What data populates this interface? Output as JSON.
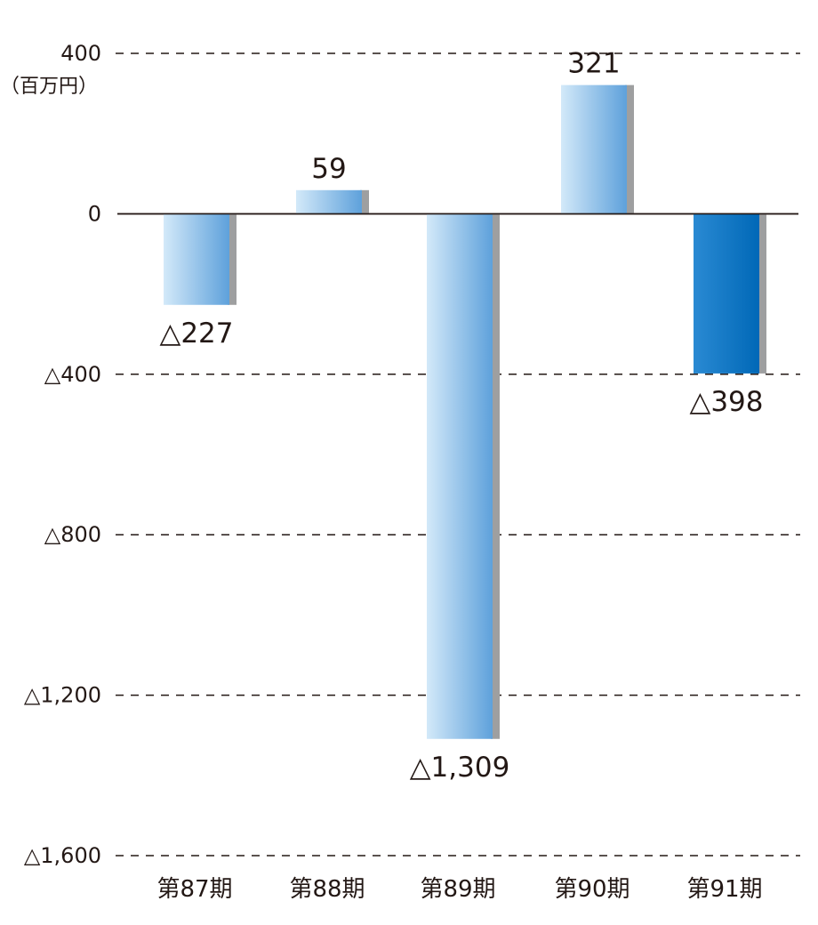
{
  "chart_data": {
    "type": "bar",
    "unit": "（百万円）",
    "categories": [
      "第87期",
      "第88期",
      "第89期",
      "第90期",
      "第91期"
    ],
    "values": [
      -227,
      59,
      -1309,
      321,
      -398
    ],
    "value_labels": [
      "△227",
      "59",
      "△1,309",
      "321",
      "△398"
    ],
    "ylim": [
      -1600,
      400
    ],
    "yticks": [
      400,
      0,
      -400,
      -800,
      -1200,
      -1600
    ],
    "ytick_labels": [
      "400",
      "0",
      "△400",
      "△800",
      "△1,200",
      "△1,600"
    ],
    "grid": "dashed horizontal at ticks",
    "highlighted_category": "第91期",
    "colors": {
      "bar_light": "#d3e9f9",
      "bar_mid": "#5ea1db",
      "bar_highlight_light": "#2a8ad3",
      "bar_highlight_dark": "#0068b7",
      "bar_shadow": "#9e9fa0",
      "grid": "#231815",
      "text": "#231815"
    }
  }
}
